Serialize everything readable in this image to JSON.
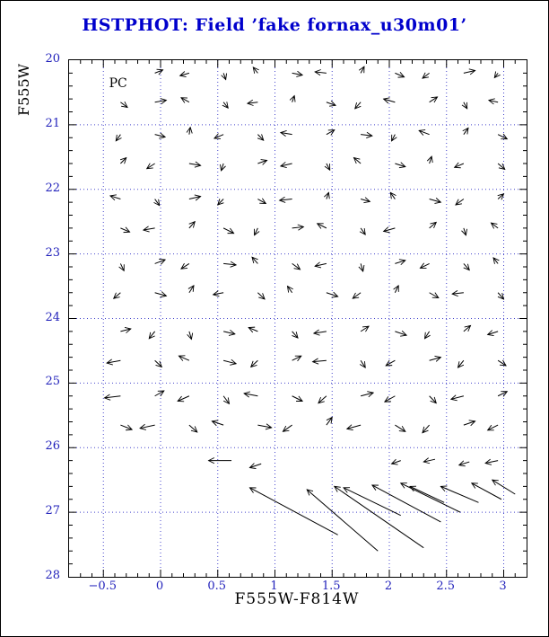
{
  "page": {
    "title": "HSTPHOT: Field ’fake fornax_u30m01’"
  },
  "chart_data": {
    "type": "scatter",
    "subtype": "quiver",
    "title": "HSTPHOT: Field ’fake fornax_u30m01’",
    "xlabel": "F555W-F814W",
    "ylabel": "F555W",
    "xlim": [
      -0.8,
      3.2
    ],
    "ylim": [
      20,
      28
    ],
    "y_inverted": true,
    "grid": true,
    "xtick_values": [
      -0.5,
      0,
      0.5,
      1,
      1.5,
      2,
      2.5,
      3
    ],
    "xtick_labels": [
      "−0.5",
      "0",
      "0.5",
      "1",
      "1.5",
      "2",
      "2.5",
      "3"
    ],
    "ytick_values": [
      20,
      21,
      22,
      23,
      24,
      25,
      26,
      27,
      28
    ],
    "ytick_labels": [
      "20",
      "21",
      "22",
      "23",
      "24",
      "25",
      "26",
      "27",
      "28"
    ],
    "annotations": [
      {
        "text": "PC",
        "x": -0.45,
        "y": 20.42
      }
    ],
    "colors": {
      "title": "#0000cc",
      "tick_labels": "#2222bb",
      "grid": "#4444cc",
      "arrows": "#000000",
      "axis": "#000000"
    },
    "arrows": [
      [
        -0.05,
        20.2,
        0.07,
        -0.05
      ],
      [
        0.25,
        20.2,
        -0.08,
        0.04
      ],
      [
        0.55,
        20.2,
        0.02,
        0.1
      ],
      [
        0.85,
        20.2,
        -0.04,
        -0.09
      ],
      [
        1.15,
        20.2,
        0.09,
        0.03
      ],
      [
        1.45,
        20.2,
        -0.1,
        -0.02
      ],
      [
        1.75,
        20.2,
        0.03,
        -0.1
      ],
      [
        2.05,
        20.2,
        0.08,
        0.06
      ],
      [
        2.35,
        20.2,
        -0.06,
        0.08
      ],
      [
        2.65,
        20.2,
        0.1,
        -0.04
      ],
      [
        2.95,
        20.2,
        -0.03,
        0.07
      ],
      [
        -0.35,
        20.65,
        0.06,
        0.08
      ],
      [
        -0.05,
        20.65,
        0.1,
        -0.03
      ],
      [
        0.25,
        20.65,
        -0.07,
        -0.07
      ],
      [
        0.55,
        20.65,
        0.04,
        0.09
      ],
      [
        0.85,
        20.65,
        -0.09,
        0.02
      ],
      [
        1.15,
        20.65,
        0.02,
        -0.1
      ],
      [
        1.45,
        20.65,
        0.08,
        0.05
      ],
      [
        1.75,
        20.65,
        -0.05,
        0.1
      ],
      [
        2.05,
        20.65,
        -0.1,
        -0.05
      ],
      [
        2.35,
        20.65,
        0.07,
        -0.08
      ],
      [
        2.65,
        20.65,
        0.03,
        0.1
      ],
      [
        2.95,
        20.65,
        -0.08,
        -0.03
      ],
      [
        -0.35,
        21.15,
        -0.04,
        0.1
      ],
      [
        -0.05,
        21.15,
        0.09,
        0.04
      ],
      [
        0.25,
        21.15,
        0.01,
        -0.11
      ],
      [
        0.55,
        21.15,
        -0.08,
        0.06
      ],
      [
        0.85,
        21.15,
        0.05,
        0.09
      ],
      [
        1.15,
        21.15,
        -0.1,
        -0.03
      ],
      [
        1.45,
        21.15,
        0.07,
        -0.07
      ],
      [
        1.75,
        21.15,
        0.1,
        0.02
      ],
      [
        2.05,
        21.15,
        -0.03,
        0.1
      ],
      [
        2.35,
        21.15,
        -0.09,
        -0.06
      ],
      [
        2.65,
        21.15,
        0.04,
        -0.1
      ],
      [
        2.95,
        21.15,
        0.08,
        0.07
      ],
      [
        -0.35,
        21.6,
        0.05,
        -0.09
      ],
      [
        -0.05,
        21.6,
        -0.07,
        0.08
      ],
      [
        0.25,
        21.6,
        0.1,
        0.03
      ],
      [
        0.55,
        21.6,
        -0.02,
        0.11
      ],
      [
        0.85,
        21.6,
        0.08,
        -0.05
      ],
      [
        1.15,
        21.6,
        -0.1,
        0.04
      ],
      [
        1.45,
        21.6,
        0.03,
        0.1
      ],
      [
        1.75,
        21.6,
        -0.06,
        -0.09
      ],
      [
        2.05,
        21.6,
        0.09,
        0.05
      ],
      [
        2.35,
        21.6,
        0.02,
        -0.11
      ],
      [
        2.65,
        21.6,
        -0.08,
        0.06
      ],
      [
        2.95,
        21.6,
        0.06,
        0.09
      ],
      [
        -0.35,
        22.15,
        -0.09,
        -0.05
      ],
      [
        -0.05,
        22.15,
        0.04,
        0.1
      ],
      [
        0.25,
        22.15,
        0.1,
        -0.04
      ],
      [
        0.55,
        22.15,
        -0.05,
        0.09
      ],
      [
        0.85,
        22.15,
        0.07,
        0.07
      ],
      [
        1.15,
        22.15,
        -0.11,
        0.02
      ],
      [
        1.45,
        22.15,
        0.02,
        -0.1
      ],
      [
        1.75,
        22.15,
        0.08,
        0.04
      ],
      [
        2.05,
        22.15,
        -0.04,
        -0.1
      ],
      [
        2.35,
        22.15,
        0.1,
        0.05
      ],
      [
        2.65,
        22.15,
        -0.07,
        0.09
      ],
      [
        2.95,
        22.15,
        0.05,
        -0.08
      ],
      [
        -0.35,
        22.6,
        0.08,
        0.06
      ],
      [
        -0.05,
        22.6,
        -0.1,
        0.03
      ],
      [
        0.25,
        22.6,
        0.05,
        -0.1
      ],
      [
        0.55,
        22.6,
        0.09,
        0.08
      ],
      [
        0.85,
        22.6,
        -0.03,
        0.11
      ],
      [
        1.15,
        22.6,
        0.1,
        -0.02
      ],
      [
        1.45,
        22.6,
        -0.08,
        -0.07
      ],
      [
        1.75,
        22.6,
        0.04,
        0.1
      ],
      [
        2.05,
        22.6,
        -0.1,
        0.05
      ],
      [
        2.35,
        22.6,
        0.06,
        -0.09
      ],
      [
        2.65,
        22.6,
        0.02,
        0.11
      ],
      [
        2.95,
        22.6,
        -0.06,
        -0.08
      ],
      [
        -0.35,
        23.15,
        0.03,
        0.11
      ],
      [
        -0.05,
        23.15,
        0.09,
        -0.06
      ],
      [
        0.25,
        23.15,
        -0.07,
        0.08
      ],
      [
        0.55,
        23.15,
        0.11,
        0.02
      ],
      [
        0.85,
        23.15,
        -0.05,
        -0.1
      ],
      [
        1.15,
        23.15,
        0.07,
        0.09
      ],
      [
        1.45,
        23.15,
        -0.1,
        0.04
      ],
      [
        1.75,
        23.15,
        0.02,
        0.12
      ],
      [
        2.05,
        23.15,
        0.09,
        -0.05
      ],
      [
        2.35,
        23.15,
        -0.08,
        0.07
      ],
      [
        2.65,
        23.15,
        0.05,
        0.1
      ],
      [
        2.95,
        23.15,
        -0.04,
        -0.09
      ],
      [
        -0.35,
        23.6,
        -0.06,
        0.09
      ],
      [
        -0.05,
        23.6,
        0.1,
        0.05
      ],
      [
        0.25,
        23.6,
        0.04,
        -0.11
      ],
      [
        0.55,
        23.6,
        -0.09,
        0.03
      ],
      [
        0.85,
        23.6,
        0.06,
        0.1
      ],
      [
        1.15,
        23.6,
        -0.04,
        -0.1
      ],
      [
        1.45,
        23.6,
        0.1,
        0.06
      ],
      [
        1.75,
        23.6,
        -0.07,
        0.09
      ],
      [
        2.05,
        23.6,
        0.03,
        -0.11
      ],
      [
        2.35,
        23.6,
        0.08,
        0.08
      ],
      [
        2.65,
        23.6,
        -0.1,
        0.02
      ],
      [
        2.95,
        23.6,
        0.05,
        0.1
      ],
      [
        -0.35,
        24.2,
        0.09,
        -0.04
      ],
      [
        -0.05,
        24.2,
        -0.05,
        0.11
      ],
      [
        0.25,
        24.2,
        0.02,
        0.12
      ],
      [
        0.55,
        24.2,
        0.1,
        0.04
      ],
      [
        0.85,
        24.2,
        -0.08,
        -0.06
      ],
      [
        1.15,
        24.2,
        0.05,
        0.1
      ],
      [
        1.45,
        24.2,
        -0.11,
        0.03
      ],
      [
        1.75,
        24.2,
        0.07,
        -0.08
      ],
      [
        2.05,
        24.2,
        0.1,
        0.06
      ],
      [
        2.35,
        24.2,
        -0.04,
        0.11
      ],
      [
        2.65,
        24.2,
        0.06,
        -0.09
      ],
      [
        2.95,
        24.2,
        -0.09,
        0.05
      ],
      [
        -0.35,
        24.65,
        -0.12,
        0.04
      ],
      [
        -0.05,
        24.65,
        0.06,
        0.1
      ],
      [
        0.25,
        24.65,
        -0.09,
        -0.07
      ],
      [
        0.55,
        24.65,
        0.11,
        0.05
      ],
      [
        0.85,
        24.65,
        -0.06,
        0.1
      ],
      [
        1.15,
        24.65,
        0.08,
        -0.07
      ],
      [
        1.45,
        24.65,
        -0.12,
        0.02
      ],
      [
        1.75,
        24.65,
        0.04,
        0.11
      ],
      [
        2.05,
        24.65,
        -0.08,
        0.08
      ],
      [
        2.35,
        24.65,
        0.1,
        -0.05
      ],
      [
        2.65,
        24.65,
        -0.05,
        0.11
      ],
      [
        2.95,
        24.65,
        0.07,
        0.08
      ],
      [
        -0.35,
        25.2,
        -0.14,
        0.03
      ],
      [
        -0.05,
        25.2,
        0.08,
        -0.08
      ],
      [
        0.25,
        25.2,
        -0.1,
        0.08
      ],
      [
        0.55,
        25.2,
        0.05,
        0.12
      ],
      [
        0.85,
        25.2,
        -0.12,
        -0.04
      ],
      [
        1.15,
        25.2,
        0.09,
        0.08
      ],
      [
        1.45,
        25.2,
        -0.07,
        0.11
      ],
      [
        1.75,
        25.2,
        0.11,
        -0.05
      ],
      [
        2.05,
        25.2,
        -0.09,
        0.09
      ],
      [
        2.35,
        25.2,
        0.06,
        0.11
      ],
      [
        2.65,
        25.2,
        -0.11,
        0.05
      ],
      [
        2.95,
        25.2,
        0.08,
        -0.07
      ],
      [
        -0.35,
        25.65,
        0.1,
        0.07
      ],
      [
        -0.05,
        25.65,
        -0.13,
        0.05
      ],
      [
        0.25,
        25.65,
        0.07,
        0.11
      ],
      [
        0.55,
        25.65,
        -0.1,
        -0.06
      ],
      [
        0.85,
        25.65,
        0.12,
        0.04
      ],
      [
        1.15,
        25.65,
        -0.08,
        0.1
      ],
      [
        1.45,
        25.65,
        0.05,
        -0.12
      ],
      [
        1.75,
        25.65,
        -0.12,
        0.06
      ],
      [
        2.05,
        25.65,
        0.09,
        0.1
      ],
      [
        2.35,
        25.65,
        -0.06,
        0.12
      ],
      [
        2.65,
        25.65,
        0.1,
        -0.06
      ],
      [
        2.95,
        25.65,
        -0.09,
        0.08
      ],
      [
        0.62,
        26.2,
        -0.2,
        0.0
      ],
      [
        0.88,
        26.25,
        -0.1,
        0.06
      ],
      [
        2.1,
        26.2,
        -0.08,
        0.05
      ],
      [
        2.4,
        26.18,
        -0.1,
        0.04
      ],
      [
        2.7,
        26.22,
        -0.09,
        0.05
      ],
      [
        2.95,
        26.2,
        -0.11,
        0.04
      ],
      [
        1.55,
        27.35,
        -0.77,
        -0.73
      ],
      [
        1.9,
        27.6,
        -0.62,
        -0.95
      ],
      [
        2.3,
        27.55,
        -0.78,
        -0.95
      ],
      [
        2.1,
        27.05,
        -0.5,
        -0.43
      ],
      [
        2.45,
        27.15,
        -0.6,
        -0.57
      ],
      [
        2.62,
        27.0,
        -0.52,
        -0.45
      ],
      [
        2.48,
        26.85,
        -0.3,
        -0.25
      ],
      [
        2.78,
        26.85,
        -0.33,
        -0.25
      ],
      [
        2.98,
        26.8,
        -0.26,
        -0.25
      ],
      [
        3.1,
        26.72,
        -0.2,
        -0.22
      ]
    ]
  }
}
